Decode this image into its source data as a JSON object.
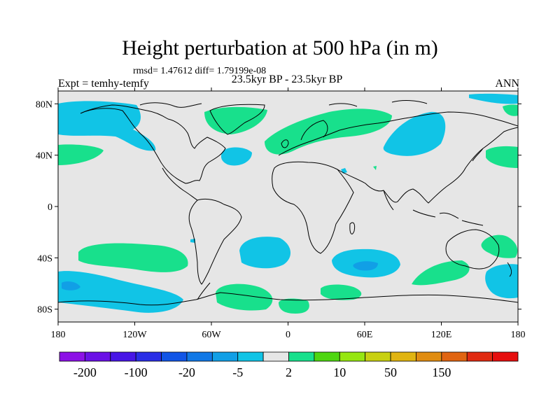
{
  "title": "Height perturbation at 500 hPa (in m)",
  "stats": "rmsd= 1.47612 diff= 1.79199e-08",
  "subtitle": "23.5kyr BP - 23.5kyr BP",
  "experiment": "Expt = temhy-temfy",
  "season": "ANN",
  "lat_ticks": [
    {
      "lat": 80,
      "label": "80N"
    },
    {
      "lat": 40,
      "label": "40N"
    },
    {
      "lat": 0,
      "label": "0"
    },
    {
      "lat": -40,
      "label": "40S"
    },
    {
      "lat": -80,
      "label": "80S"
    }
  ],
  "lon_ticks": [
    {
      "lon": -180,
      "label": "180"
    },
    {
      "lon": -120,
      "label": "120W"
    },
    {
      "lon": -60,
      "label": "60W"
    },
    {
      "lon": 0,
      "label": "0"
    },
    {
      "lon": 60,
      "label": "60E"
    },
    {
      "lon": 120,
      "label": "120E"
    },
    {
      "lon": 180,
      "label": "180"
    }
  ],
  "colors": {
    "background": "#e6e6e6",
    "negative_small": "#11c4e6",
    "negative_mid": "#119fe6",
    "positive_small": "#18e08c"
  },
  "colorbar": {
    "colors": [
      "#8c11e6",
      "#6a11e6",
      "#4816e6",
      "#2a2ee6",
      "#1155e6",
      "#1178e6",
      "#119fe6",
      "#11c4e6",
      "#e6e6e6",
      "#18e08c",
      "#4ed611",
      "#96e611",
      "#c8d011",
      "#e0b411",
      "#e08c11",
      "#e06411",
      "#e02a11",
      "#e60e0e"
    ],
    "labels": [
      {
        "boundary": 1,
        "label": "-200"
      },
      {
        "boundary": 3,
        "label": "-100"
      },
      {
        "boundary": 5,
        "label": "-20"
      },
      {
        "boundary": 7,
        "label": "-5"
      },
      {
        "boundary": 9,
        "label": "2"
      },
      {
        "boundary": 11,
        "label": "10"
      },
      {
        "boundary": 13,
        "label": "50"
      },
      {
        "boundary": 15,
        "label": "150"
      }
    ]
  },
  "chart_data": {
    "type": "heatmap",
    "projection": "cylindrical-equidistant",
    "variable": "500 hPa height perturbation",
    "units": "m",
    "xlim": [
      -180,
      180
    ],
    "ylim": [
      -90,
      90
    ],
    "regions": [
      {
        "sign": "negative",
        "category": "-5 to -2",
        "center": [
          -158,
          66
        ],
        "extent": "North Pacific / Alaska"
      },
      {
        "sign": "positive",
        "category": "2 to 10",
        "center": [
          -170,
          44
        ],
        "extent": "North Pacific"
      },
      {
        "sign": "positive",
        "category": "2 to 10",
        "center": [
          -47,
          78
        ],
        "extent": "Greenland"
      },
      {
        "sign": "negative",
        "category": "-5 to -2",
        "center": [
          -30,
          43
        ],
        "extent": "North Atlantic"
      },
      {
        "sign": "positive",
        "category": "2 to 10",
        "center": [
          35,
          58
        ],
        "extent": "Europe / Western Russia"
      },
      {
        "sign": "negative",
        "category": "-5 to -2",
        "center": [
          97,
          58
        ],
        "extent": "Siberia"
      },
      {
        "sign": "positive",
        "category": "2 to 10",
        "center": [
          168,
          44
        ],
        "extent": "Northwest Pacific"
      },
      {
        "sign": "negative",
        "category": "-5 to -2",
        "center": [
          137,
          87
        ],
        "extent": "Arctic"
      },
      {
        "sign": "positive",
        "category": "2 to 10",
        "center": [
          -130,
          -40
        ],
        "extent": "South Pacific"
      },
      {
        "sign": "negative",
        "category": "-5 to -2",
        "center": [
          -30,
          -36
        ],
        "extent": "South Atlantic"
      },
      {
        "sign": "negative",
        "category": "-5 to -2",
        "center": [
          60,
          -47
        ],
        "extent": "South Indian Ocean"
      },
      {
        "sign": "negative",
        "category": "-20 to -5",
        "center": [
          56,
          -48
        ],
        "extent": "South Indian Ocean core"
      },
      {
        "sign": "positive",
        "category": "2 to 10",
        "center": [
          160,
          -36
        ],
        "extent": "Tasman Sea"
      },
      {
        "sign": "positive",
        "category": "2 to 10",
        "center": [
          108,
          -60
        ],
        "extent": "Southern Ocean"
      },
      {
        "sign": "negative",
        "category": "-5 to -2",
        "center": [
          -140,
          -70
        ],
        "extent": "Amundsen Sea"
      },
      {
        "sign": "negative",
        "category": "-20 to -5",
        "center": [
          -170,
          -62
        ],
        "extent": "Ross Sea"
      },
      {
        "sign": "negative",
        "category": "-5 to -2",
        "center": [
          165,
          -62
        ],
        "extent": "Southern Ocean"
      },
      {
        "sign": "positive",
        "category": "2 to 10",
        "center": [
          -25,
          -72
        ],
        "extent": "Weddell Sea"
      },
      {
        "sign": "positive",
        "category": "2 to 10",
        "center": [
          35,
          -72
        ],
        "extent": "Antarctic coast"
      }
    ]
  }
}
